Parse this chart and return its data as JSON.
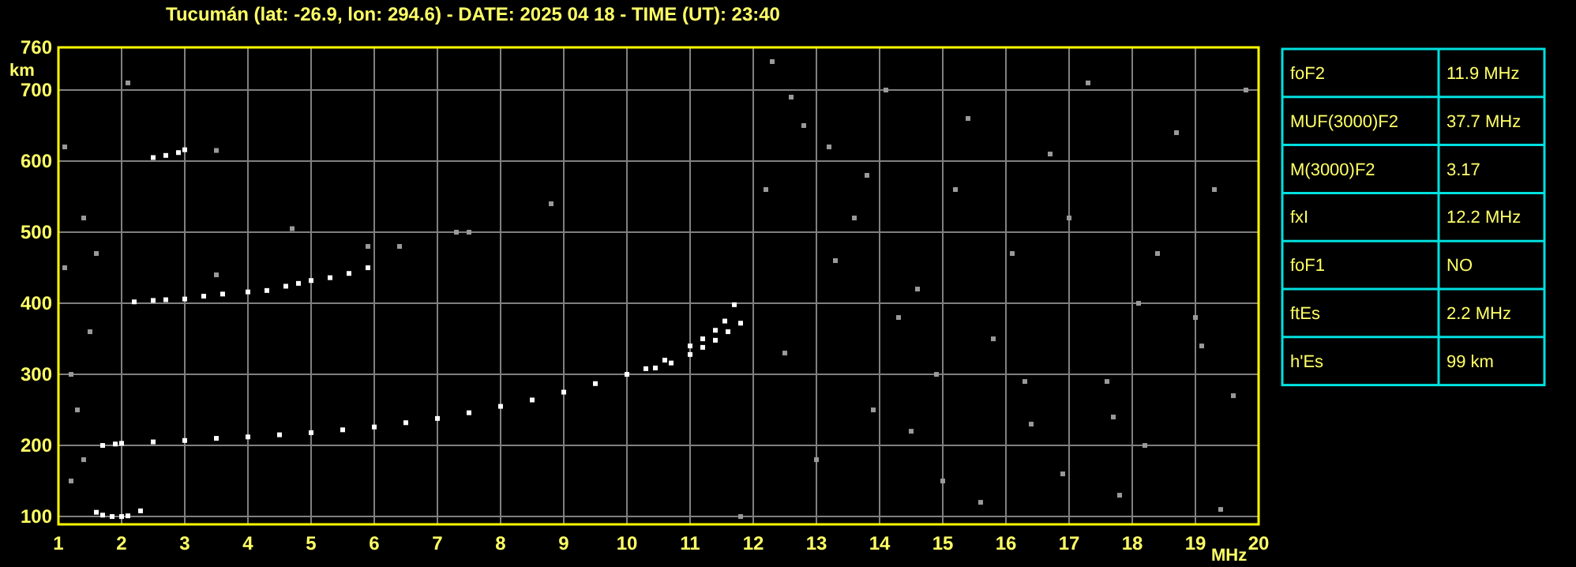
{
  "chart_data": [
    {
      "type": "scatter",
      "title": "Tucumán (lat: -26.9, lon: 294.6) - DATE: 2025 04 18 - TIME (UT): 23:40",
      "xlabel": "MHz",
      "ylabel": "km",
      "xlim": [
        1,
        20
      ],
      "ylim": [
        89,
        760
      ],
      "xticks": [
        1,
        2,
        3,
        4,
        5,
        6,
        7,
        8,
        9,
        10,
        11,
        12,
        13,
        14,
        15,
        16,
        17,
        18,
        19,
        20
      ],
      "yticks": [
        100,
        200,
        300,
        400,
        500,
        600,
        700,
        760
      ],
      "grid": true,
      "marker": "square",
      "series": [
        {
          "color": "#ffffff",
          "x": [
            1.7,
            1.9,
            2,
            2.5,
            3,
            3.5,
            4,
            4.5,
            5,
            5.5,
            6,
            6.5,
            7,
            7.5,
            8,
            8.5,
            9,
            9.5,
            10,
            10.3,
            10.6,
            11,
            11.2,
            11.4,
            11.55,
            11.7
          ],
          "values": [
            200,
            202,
            203,
            205,
            207,
            210,
            212,
            215,
            218,
            222,
            226,
            232,
            238,
            246,
            255,
            264,
            275,
            287,
            300,
            308,
            320,
            340,
            350,
            362,
            375,
            398
          ]
        },
        {
          "color": "#ffffff",
          "x": [
            10.45,
            10.7,
            11,
            11.2,
            11.4,
            11.6,
            11.8
          ],
          "values": [
            309,
            316,
            328,
            338,
            348,
            360,
            372
          ]
        },
        {
          "color": "#ffffff",
          "x": [
            2.2,
            2.5,
            2.7,
            3,
            3.3,
            3.6,
            4,
            4.3,
            4.6,
            4.8,
            5,
            5.3,
            5.6,
            5.9
          ],
          "values": [
            402,
            404,
            405,
            406,
            410,
            413,
            416,
            418,
            424,
            428,
            432,
            436,
            442,
            450
          ]
        },
        {
          "color": "#ffffff",
          "x": [
            2.5,
            2.7,
            2.9,
            3
          ],
          "values": [
            605,
            608,
            612,
            616
          ]
        },
        {
          "color": "#ffffff",
          "x": [
            1.6,
            1.7,
            1.85,
            2,
            2.1,
            2.3
          ],
          "values": [
            106,
            102,
            100,
            100,
            101,
            108
          ]
        },
        {
          "color": "#9a9a9a",
          "x": [
            1.1,
            1.2,
            1.4,
            1.5,
            1.6,
            1.3,
            1.2,
            1.4,
            2.1,
            1.1,
            3.5,
            3.5,
            4.7,
            5.9,
            6.4,
            7.3,
            7.5,
            8.8,
            11.8,
            12.2,
            12.3,
            12.6,
            12.8,
            13.2,
            13.3,
            13.6,
            13.8,
            14.1,
            14.3,
            14.6,
            14.9,
            15.2,
            15.4,
            15.8,
            16.1,
            16.4,
            16.7,
            17.0,
            17.3,
            17.6,
            17.8,
            18.1,
            18.4,
            18.7,
            19.0,
            19.3,
            19.6,
            19.8,
            13.0,
            14.5,
            15.6,
            16.9,
            18.2,
            19.4,
            12.5,
            13.9,
            15.0,
            16.3,
            17.7,
            19.1
          ],
          "values": [
            620,
            300,
            520,
            360,
            470,
            250,
            150,
            180,
            710,
            450,
            615,
            440,
            505,
            480,
            480,
            500,
            500,
            540,
            100,
            560,
            740,
            690,
            650,
            620,
            460,
            520,
            580,
            700,
            380,
            420,
            300,
            560,
            660,
            350,
            470,
            230,
            610,
            520,
            710,
            290,
            130,
            400,
            470,
            640,
            380,
            560,
            270,
            700,
            180,
            220,
            120,
            160,
            200,
            110,
            330,
            250,
            150,
            290,
            240,
            340
          ]
        }
      ]
    },
    {
      "type": "other",
      "categories": [
        "foF2",
        "MUF(3000)F2",
        "M(3000)F2",
        "fxI",
        "foF1",
        "ftEs",
        "h'Es"
      ],
      "value_labels": [
        "11.9 MHz",
        "37.7 MHz",
        "3.17",
        "12.2 MHz",
        "NO",
        "2.2 MHz",
        "99 km"
      ]
    }
  ]
}
